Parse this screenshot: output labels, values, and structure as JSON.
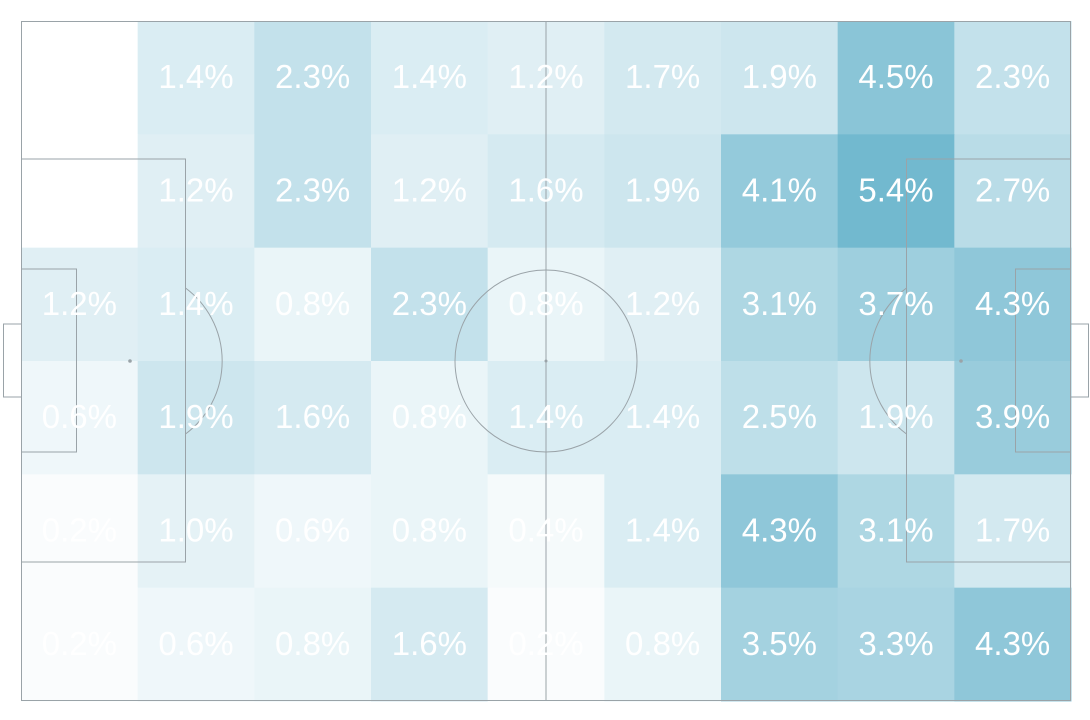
{
  "chart_data": {
    "type": "heatmap",
    "title": "",
    "xlabel": "",
    "ylabel": "",
    "grid_columns": 9,
    "grid_rows": 6,
    "unit": "%",
    "labels": [
      [
        "",
        "1.4%",
        "2.3%",
        "1.4%",
        "1.2%",
        "1.7%",
        "1.9%",
        "4.5%",
        "2.3%"
      ],
      [
        "",
        "1.2%",
        "2.3%",
        "1.2%",
        "1.6%",
        "1.9%",
        "4.1%",
        "5.4%",
        "2.7%"
      ],
      [
        "1.2%",
        "1.4%",
        "0.8%",
        "2.3%",
        "0.8%",
        "1.2%",
        "3.1%",
        "3.7%",
        "4.3%"
      ],
      [
        "0.6%",
        "1.9%",
        "1.6%",
        "0.8%",
        "1.4%",
        "1.4%",
        "2.5%",
        "1.9%",
        "3.9%"
      ],
      [
        "0.2%",
        "1.0%",
        "0.6%",
        "0.8%",
        "0.4%",
        "1.4%",
        "4.3%",
        "3.1%",
        "1.7%"
      ],
      [
        "0.2%",
        "0.6%",
        "0.8%",
        "1.6%",
        "0.2%",
        "0.8%",
        "3.5%",
        "3.3%",
        "4.3%"
      ]
    ],
    "values": [
      [
        0.0,
        1.4,
        2.3,
        1.4,
        1.2,
        1.7,
        1.9,
        4.5,
        2.3
      ],
      [
        0.0,
        1.2,
        2.3,
        1.2,
        1.6,
        1.9,
        4.1,
        5.4,
        2.7
      ],
      [
        1.2,
        1.4,
        0.8,
        2.3,
        0.8,
        1.2,
        3.1,
        3.7,
        4.3
      ],
      [
        0.6,
        1.9,
        1.6,
        0.8,
        1.4,
        1.4,
        2.5,
        1.9,
        3.9
      ],
      [
        0.2,
        1.0,
        0.6,
        0.8,
        0.4,
        1.4,
        4.3,
        3.1,
        1.7
      ],
      [
        0.2,
        0.6,
        0.8,
        1.6,
        0.2,
        0.8,
        3.5,
        3.3,
        4.3
      ]
    ],
    "color_min": "#ffffff",
    "color_max": "#72b9cf",
    "value_max": 5.4,
    "label_color": "#ffffff",
    "line_color": "#9aa3a8",
    "background": "football pitch",
    "grid": false
  }
}
